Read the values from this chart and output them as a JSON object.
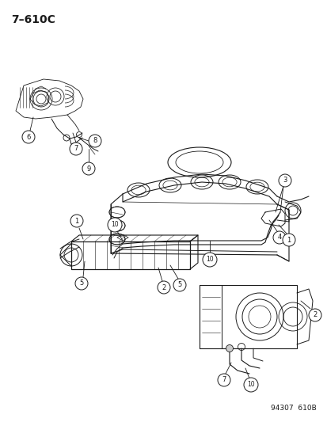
{
  "title": "7–610C",
  "footer": "94307  610B",
  "bg_color": "#ffffff",
  "lc": "#1a1a1a",
  "title_fontsize": 10,
  "footer_fontsize": 6.5,
  "fig_width": 4.14,
  "fig_height": 5.33,
  "dpi": 100
}
